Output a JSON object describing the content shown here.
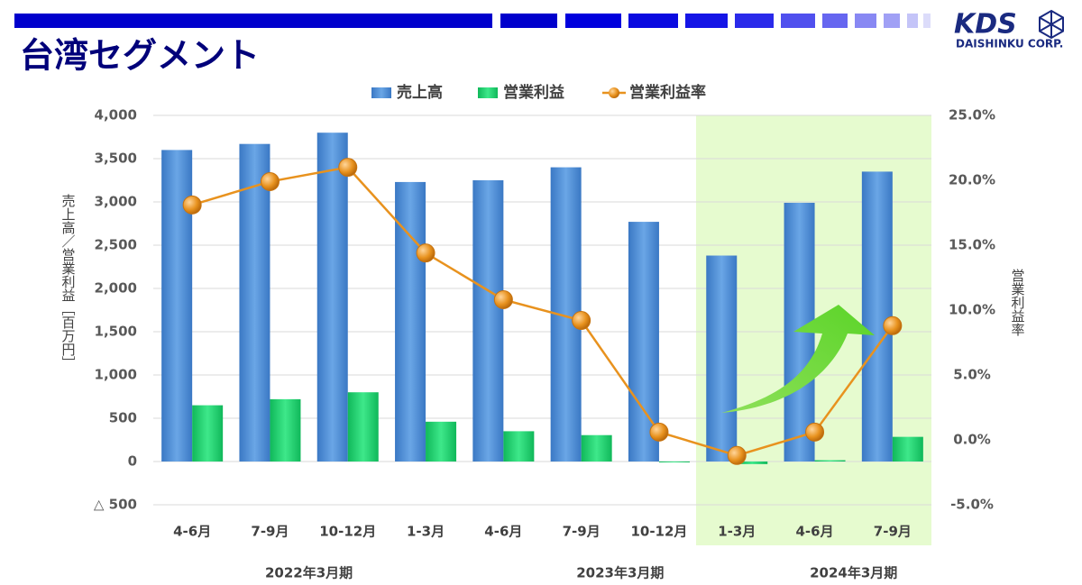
{
  "header": {
    "title": "台湾セグメント",
    "logo": "KDS",
    "logo_sub": "DAISHINKU CORP."
  },
  "chart_data": {
    "type": "bar",
    "categories": [
      "4-6月",
      "7-9月",
      "10-12月",
      "1-3月",
      "4-6月",
      "7-9月",
      "10-12月",
      "1-3月",
      "4-6月",
      "7-9月"
    ],
    "groups": [
      "2022年3月期",
      "2023年3月期",
      "2024年3月期"
    ],
    "ylabel": "売上高／営業利益［百万円］",
    "y2label": "営業利益率",
    "ylim": [
      -500,
      4000
    ],
    "yticks": [
      {
        "value": -500,
        "label": "△ 500"
      },
      0,
      500,
      {
        "value": 1000,
        "label": "1,000"
      },
      {
        "value": 1500,
        "label": "1,500"
      },
      {
        "value": 2000,
        "label": "2,000"
      },
      {
        "value": 2500,
        "label": "2,500"
      },
      {
        "value": 3000,
        "label": "3,000"
      },
      {
        "value": 3500,
        "label": "3,500"
      },
      {
        "value": 4000,
        "label": "4,000"
      }
    ],
    "y2lim": [
      -5,
      25
    ],
    "y2ticks": [
      {
        "value": -5,
        "label": "-5.0%"
      },
      {
        "value": 0,
        "label": "0.0%"
      },
      {
        "value": 5,
        "label": "5.0%"
      },
      {
        "value": 10,
        "label": "10.0%"
      },
      {
        "value": 15,
        "label": "15.0%"
      },
      {
        "value": 20,
        "label": "20.0%"
      },
      {
        "value": 25,
        "label": "25.0%"
      }
    ],
    "grid": true,
    "series": [
      {
        "name": "売上高",
        "color": "#4f8fd6",
        "values": [
          3600,
          3670,
          3800,
          3230,
          3250,
          3400,
          2770,
          2380,
          2990,
          3350
        ]
      },
      {
        "name": "営業利益",
        "color": "#1fcf6b",
        "values": [
          650,
          720,
          800,
          460,
          350,
          305,
          -10,
          -30,
          15,
          285
        ]
      },
      {
        "name": "営業利益率",
        "color": "#e8921e",
        "type": "line",
        "axis": "y2",
        "values": [
          18.1,
          19.9,
          21.0,
          14.4,
          10.8,
          9.2,
          0.6,
          -1.2,
          0.6,
          8.8
        ]
      }
    ]
  }
}
